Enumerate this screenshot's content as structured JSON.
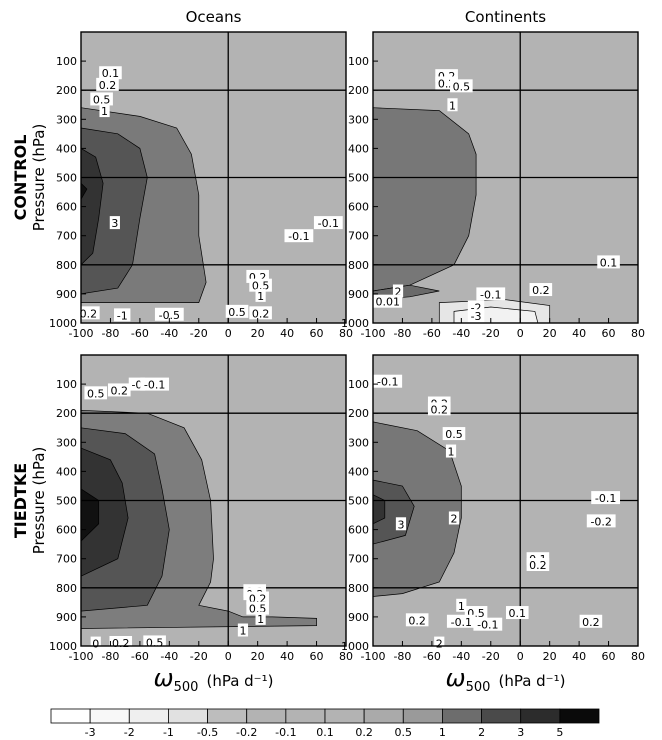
{
  "chart_data": {
    "type": "contour",
    "columns": [
      "Oceans",
      "Continents"
    ],
    "rows": [
      "CONTROL",
      "TIEDTKE"
    ],
    "ylabel": "Pressure (hPa)",
    "xlabel_symbol": "ω",
    "xlabel_sub": "500",
    "xlabel_units": "(hPa d⁻¹)",
    "x_ticks": [
      -100,
      -80,
      -60,
      -40,
      -20,
      0,
      20,
      40,
      60,
      80
    ],
    "y_ticks": [
      100,
      200,
      300,
      400,
      500,
      600,
      700,
      800,
      900,
      1000
    ],
    "xlim": [
      -100,
      80
    ],
    "ylim": [
      1000,
      0
    ],
    "reference_lines": {
      "x": [
        0
      ],
      "y": [
        200,
        500,
        800
      ]
    },
    "colorbar": {
      "levels": [
        "-3",
        "-2",
        "-1",
        "-0.5",
        "-0.2",
        "-0.1",
        "0.1",
        "0.2",
        "0.5",
        "1",
        "2",
        "3",
        "5"
      ],
      "colors": [
        "#ffffff",
        "#f8f8f8",
        "#efefef",
        "#e1e1e1",
        "#bdbdbd",
        "#b3b3b3",
        "#b3b3b3",
        "#b3b3b3",
        "#aaaaaa",
        "#9a9a9a",
        "#6d6d6d",
        "#4a4a4a",
        "#2c2c2c",
        "#0a0a0a"
      ]
    },
    "panels": [
      {
        "row": "CONTROL",
        "column": "Oceans",
        "regions": [
          {
            "level": "1",
            "color": "#7a7a7a",
            "outline": [
              [
                -100,
                260
              ],
              [
                -60,
                290
              ],
              [
                -35,
                330
              ],
              [
                -25,
                420
              ],
              [
                -20,
                560
              ],
              [
                -20,
                700
              ],
              [
                -15,
                860
              ],
              [
                -20,
                930
              ],
              [
                -100,
                930
              ]
            ]
          },
          {
            "level": "2",
            "color": "#555555",
            "outline": [
              [
                -100,
                330
              ],
              [
                -75,
                350
              ],
              [
                -60,
                400
              ],
              [
                -55,
                500
              ],
              [
                -60,
                640
              ],
              [
                -65,
                800
              ],
              [
                -75,
                880
              ],
              [
                -100,
                900
              ]
            ]
          },
          {
            "level": "3",
            "color": "#333333",
            "outline": [
              [
                -100,
                400
              ],
              [
                -90,
                430
              ],
              [
                -85,
                520
              ],
              [
                -88,
                640
              ],
              [
                -92,
                760
              ],
              [
                -100,
                800
              ]
            ]
          },
          {
            "level": "5",
            "color": "#111111",
            "outline": [
              [
                -100,
                520
              ],
              [
                -96,
                540
              ],
              [
                -100,
                575
              ]
            ]
          }
        ],
        "contour_labels": [
          {
            "x": -80,
            "p": 140,
            "label": "0.1"
          },
          {
            "x": -82,
            "p": 180,
            "label": "0.2"
          },
          {
            "x": -86,
            "p": 230,
            "label": "0.5"
          },
          {
            "x": -84,
            "p": 270,
            "label": "1"
          },
          {
            "x": -77,
            "p": 655,
            "label": "3"
          },
          {
            "x": 68,
            "p": 655,
            "label": "-0.1"
          },
          {
            "x": 48,
            "p": 700,
            "label": "-0.1"
          },
          {
            "x": 6,
            "p": 960,
            "label": "0.5"
          },
          {
            "x": 22,
            "p": 965,
            "label": "0.2"
          },
          {
            "x": -40,
            "p": 970,
            "label": "-0.5"
          },
          {
            "x": -72,
            "p": 972,
            "label": "-1"
          },
          {
            "x": -95,
            "p": 965,
            "label": "0.2"
          },
          {
            "x": 20,
            "p": 840,
            "label": "0.2"
          },
          {
            "x": 22,
            "p": 870,
            "label": "0.5"
          },
          {
            "x": 22,
            "p": 905,
            "label": "1"
          }
        ]
      },
      {
        "row": "CONTROL",
        "column": "Continents",
        "regions": [
          {
            "level": "1",
            "color": "#777777",
            "outline": [
              [
                -100,
                260
              ],
              [
                -55,
                270
              ],
              [
                -35,
                350
              ],
              [
                -30,
                420
              ],
              [
                -30,
                560
              ],
              [
                -35,
                700
              ],
              [
                -45,
                800
              ],
              [
                -75,
                870
              ],
              [
                -100,
                890
              ]
            ]
          },
          {
            "level": "2",
            "color": "#6a6a6a",
            "outline": [
              [
                -100,
                890
              ],
              [
                -75,
                870
              ],
              [
                -55,
                890
              ],
              [
                -75,
                910
              ],
              [
                -100,
                920
              ]
            ]
          },
          {
            "level": "-0.5",
            "color": "#e6e6e6",
            "outline": [
              [
                -55,
                930
              ],
              [
                -10,
                920
              ],
              [
                20,
                940
              ],
              [
                20,
                1000
              ],
              [
                -55,
                1000
              ]
            ]
          },
          {
            "level": "-1",
            "color": "#f2f2f2",
            "outline": [
              [
                -45,
                960
              ],
              [
                -20,
                945
              ],
              [
                10,
                960
              ],
              [
                12,
                1000
              ],
              [
                -45,
                1000
              ]
            ]
          }
        ],
        "contour_labels": [
          {
            "x": -50,
            "p": 150,
            "label": "0.2"
          },
          {
            "x": -50,
            "p": 175,
            "label": "0.2"
          },
          {
            "x": -40,
            "p": 185,
            "label": "0.5"
          },
          {
            "x": -46,
            "p": 250,
            "label": "1"
          },
          {
            "x": -83,
            "p": 890,
            "label": "2"
          },
          {
            "x": -90,
            "p": 925,
            "label": "0.01"
          },
          {
            "x": -20,
            "p": 900,
            "label": "-0.1"
          },
          {
            "x": 14,
            "p": 885,
            "label": "0.2"
          },
          {
            "x": -30,
            "p": 945,
            "label": "-2"
          },
          {
            "x": -30,
            "p": 975,
            "label": "-3"
          },
          {
            "x": 60,
            "p": 790,
            "label": "0.1"
          }
        ]
      },
      {
        "row": "TIEDTKE",
        "column": "Oceans",
        "regions": [
          {
            "level": "1",
            "color": "#7d7d7d",
            "outline": [
              [
                -100,
                190
              ],
              [
                -55,
                200
              ],
              [
                -30,
                250
              ],
              [
                -18,
                360
              ],
              [
                -12,
                500
              ],
              [
                -10,
                700
              ],
              [
                -12,
                780
              ],
              [
                -20,
                860
              ],
              [
                0,
                880
              ],
              [
                10,
                900
              ],
              [
                30,
                900
              ],
              [
                60,
                905
              ],
              [
                60,
                930
              ],
              [
                -100,
                940
              ]
            ]
          },
          {
            "level": "2",
            "color": "#555555",
            "outline": [
              [
                -100,
                250
              ],
              [
                -70,
                270
              ],
              [
                -50,
                340
              ],
              [
                -45,
                460
              ],
              [
                -40,
                600
              ],
              [
                -45,
                760
              ],
              [
                -55,
                860
              ],
              [
                -100,
                880
              ]
            ]
          },
          {
            "level": "3",
            "color": "#333333",
            "outline": [
              [
                -100,
                320
              ],
              [
                -80,
                360
              ],
              [
                -72,
                440
              ],
              [
                -68,
                560
              ],
              [
                -75,
                700
              ],
              [
                -100,
                760
              ]
            ]
          },
          {
            "level": "5",
            "color": "#111111",
            "outline": [
              [
                -100,
                460
              ],
              [
                -88,
                500
              ],
              [
                -88,
                580
              ],
              [
                -100,
                640
              ]
            ]
          }
        ],
        "contour_labels": [
          {
            "x": -90,
            "p": 130,
            "label": "0.5"
          },
          {
            "x": -74,
            "p": 120,
            "label": "0.2"
          },
          {
            "x": -62,
            "p": 100,
            "label": "-0"
          },
          {
            "x": -50,
            "p": 100,
            "label": "-0.1"
          },
          {
            "x": 18,
            "p": 810,
            "label": "0.1"
          },
          {
            "x": 18,
            "p": 820,
            "label": "0.2"
          },
          {
            "x": 20,
            "p": 835,
            "label": "0.2"
          },
          {
            "x": 20,
            "p": 870,
            "label": "0.5"
          },
          {
            "x": 22,
            "p": 905,
            "label": "1"
          },
          {
            "x": 10,
            "p": 945,
            "label": "1"
          },
          {
            "x": -90,
            "p": 990,
            "label": "0"
          },
          {
            "x": -73,
            "p": 988,
            "label": "0.2"
          },
          {
            "x": -50,
            "p": 986,
            "label": "0.5"
          }
        ]
      },
      {
        "row": "TIEDTKE",
        "column": "Continents",
        "regions": [
          {
            "level": "1",
            "color": "#777777",
            "outline": [
              [
                -100,
                230
              ],
              [
                -70,
                260
              ],
              [
                -48,
                330
              ],
              [
                -40,
                450
              ],
              [
                -40,
                560
              ],
              [
                -45,
                680
              ],
              [
                -55,
                780
              ],
              [
                -80,
                820
              ],
              [
                -100,
                830
              ]
            ]
          },
          {
            "level": "2",
            "color": "#555555",
            "outline": [
              [
                -100,
                430
              ],
              [
                -80,
                450
              ],
              [
                -72,
                520
              ],
              [
                -78,
                620
              ],
              [
                -100,
                650
              ]
            ]
          },
          {
            "level": "3",
            "color": "#333333",
            "outline": [
              [
                -100,
                480
              ],
              [
                -92,
                500
              ],
              [
                -92,
                560
              ],
              [
                -100,
                580
              ]
            ]
          }
        ],
        "contour_labels": [
          {
            "x": -90,
            "p": 90,
            "label": "-0.1"
          },
          {
            "x": -55,
            "p": 165,
            "label": "0.2"
          },
          {
            "x": -55,
            "p": 185,
            "label": "0.2"
          },
          {
            "x": -45,
            "p": 270,
            "label": "0.5"
          },
          {
            "x": -47,
            "p": 330,
            "label": "1"
          },
          {
            "x": -45,
            "p": 560,
            "label": "2"
          },
          {
            "x": -81,
            "p": 580,
            "label": "3"
          },
          {
            "x": 58,
            "p": 490,
            "label": "-0.1"
          },
          {
            "x": 55,
            "p": 570,
            "label": "-0.2"
          },
          {
            "x": 12,
            "p": 700,
            "label": "0.1"
          },
          {
            "x": 12,
            "p": 720,
            "label": "0.2"
          },
          {
            "x": -40,
            "p": 860,
            "label": "1"
          },
          {
            "x": -30,
            "p": 885,
            "label": "0.5"
          },
          {
            "x": -70,
            "p": 910,
            "label": "0.2"
          },
          {
            "x": -40,
            "p": 915,
            "label": "-0.1"
          },
          {
            "x": -22,
            "p": 925,
            "label": "-0.1"
          },
          {
            "x": -2,
            "p": 885,
            "label": "0.1"
          },
          {
            "x": 48,
            "p": 915,
            "label": "0.2"
          },
          {
            "x": -55,
            "p": 990,
            "label": "2"
          }
        ]
      }
    ]
  }
}
